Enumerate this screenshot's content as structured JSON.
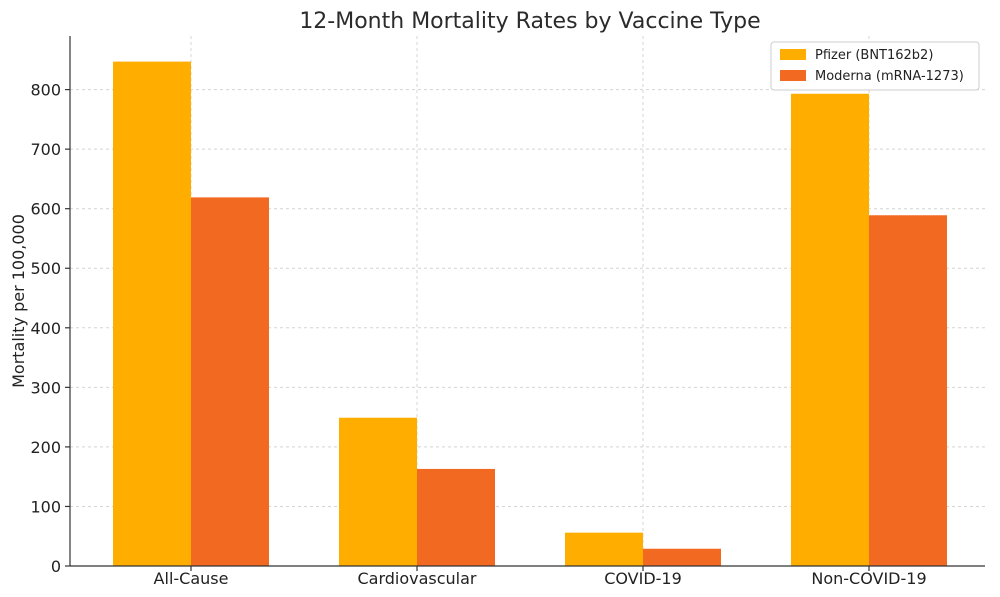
{
  "chart_data": {
    "type": "bar",
    "title": "12-Month Mortality Rates by Vaccine Type",
    "xlabel": "",
    "ylabel": "Mortality per 100,000",
    "categories": [
      "All-Cause",
      "Cardiovascular",
      "COVID-19",
      "Non-COVID-19"
    ],
    "series": [
      {
        "name": "Pfizer (BNT162b2)",
        "color": "#FFAE00",
        "values": [
          847,
          249,
          56,
          793
        ]
      },
      {
        "name": "Moderna (mRNA-1273)",
        "color": "#F26A22",
        "values": [
          619,
          163,
          29,
          589
        ]
      }
    ],
    "yticks": [
      0,
      100,
      200,
      300,
      400,
      500,
      600,
      700,
      800
    ],
    "ylim": [
      0,
      890
    ],
    "grid": true,
    "legend_position": "top-right"
  }
}
